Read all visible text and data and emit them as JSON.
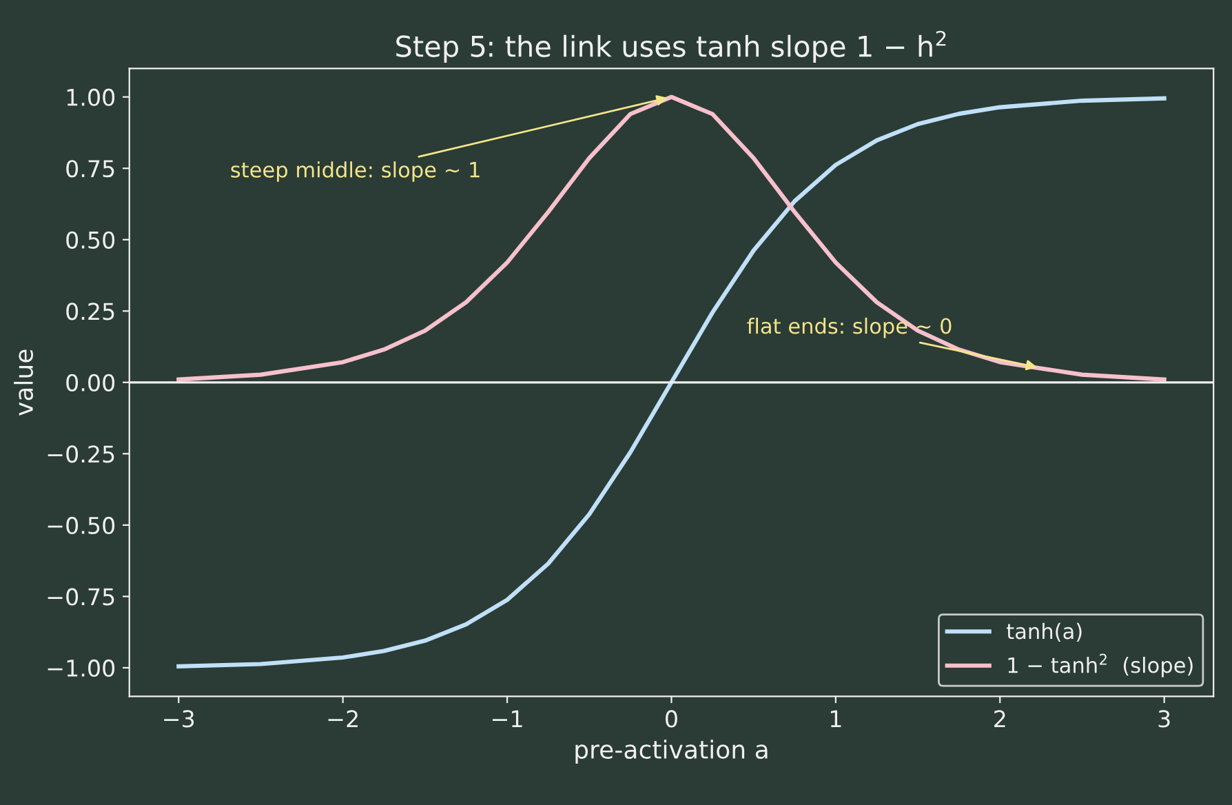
{
  "chart_data": {
    "type": "line",
    "title": "Step 5: the link uses tanh slope 1 − h$^{2}$",
    "xlabel": "pre-activation a",
    "ylabel": "value",
    "x": [
      -3,
      -2.5,
      -2,
      -1.75,
      -1.5,
      -1.25,
      -1,
      -0.75,
      -0.5,
      -0.25,
      0,
      0.25,
      0.5,
      0.75,
      1,
      1.25,
      1.5,
      1.75,
      2,
      2.5,
      3
    ],
    "series": [
      {
        "name": "tanh(a)",
        "color": "#bfe0f8",
        "values": [
          -0.995,
          -0.987,
          -0.964,
          -0.941,
          -0.905,
          -0.848,
          -0.762,
          -0.635,
          -0.462,
          -0.245,
          0,
          0.245,
          0.462,
          0.635,
          0.762,
          0.848,
          0.905,
          0.941,
          0.964,
          0.987,
          0.995
        ]
      },
      {
        "name": "1 − tanh$^{2}$  (slope)",
        "color": "#f7c0cc",
        "values": [
          0.01,
          0.027,
          0.071,
          0.115,
          0.181,
          0.281,
          0.42,
          0.597,
          0.786,
          0.94,
          1.0,
          0.94,
          0.786,
          0.597,
          0.42,
          0.281,
          0.181,
          0.115,
          0.071,
          0.027,
          0.01
        ]
      }
    ],
    "annotations": [
      {
        "text": "steep middle: slope ~ 1",
        "x": 0,
        "y": 1.0
      },
      {
        "text": "flat ends: slope ~ 0",
        "x": 2.25,
        "y": 0.05
      }
    ],
    "ref_lines": [
      {
        "axis": "y",
        "value": 0,
        "label": null,
        "color": "#f0f0f0"
      }
    ],
    "xlim": [
      -3.3,
      3.3
    ],
    "ylim": [
      -1.1,
      1.1
    ],
    "xticks": [
      {
        "value": -3,
        "label": "−3"
      },
      {
        "value": -2,
        "label": "−2"
      },
      {
        "value": -1,
        "label": "−1"
      },
      0,
      1,
      2,
      3
    ],
    "yticks": [
      {
        "value": -1,
        "label": "−1.00"
      },
      {
        "value": -0.75,
        "label": "−0.75"
      },
      {
        "value": -0.5,
        "label": "−0.50"
      },
      {
        "value": -0.25,
        "label": "−0.25"
      },
      {
        "value": 0,
        "label": "0.00"
      },
      {
        "value": 0.25,
        "label": "0.25"
      },
      {
        "value": 0.5,
        "label": "0.50"
      },
      {
        "value": 0.75,
        "label": "0.75"
      },
      {
        "value": 1,
        "label": "1.00"
      }
    ],
    "grid": false,
    "legend": "bottom right",
    "marker": "none",
    "line_style": "solid"
  }
}
